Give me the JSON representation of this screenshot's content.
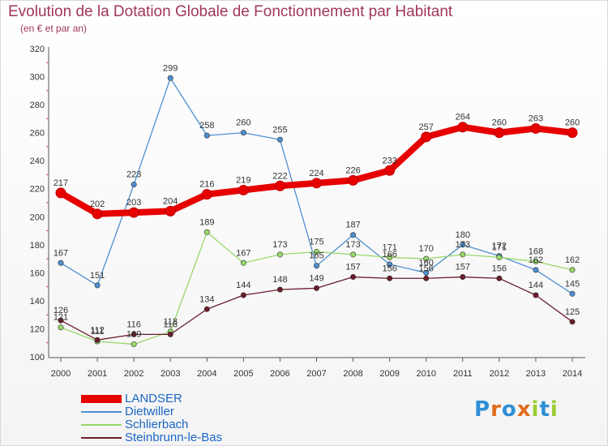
{
  "header": {
    "title": "Evolution de la Dotation Globale de Fonctionnement par Habitant",
    "subtitle": "(en € et par an)"
  },
  "chart_data": {
    "type": "line",
    "title": "Evolution de la Dotation Globale de Fonctionnement par Habitant",
    "subtitle": "(en € et par an)",
    "x": [
      "2000",
      "2001",
      "2002",
      "2003",
      "2004",
      "2005",
      "2006",
      "2007",
      "2008",
      "2009",
      "2010",
      "2011",
      "2012",
      "2013",
      "2014"
    ],
    "ylim": [
      100,
      320
    ],
    "yticks": [
      100,
      120,
      140,
      160,
      180,
      200,
      220,
      240,
      260,
      280,
      300,
      320
    ],
    "grid": false,
    "legend_position": "bottom-left",
    "series": [
      {
        "name": "LANDSER",
        "color": "#e60000",
        "values": [
          217,
          202,
          203,
          204,
          216,
          219,
          222,
          224,
          226,
          233,
          257,
          264,
          260,
          263,
          260
        ]
      },
      {
        "name": "Dietwiller",
        "color": "#4e8fd1",
        "values": [
          167,
          151,
          223,
          299,
          258,
          260,
          255,
          165,
          187,
          166,
          160,
          180,
          172,
          162,
          145
        ]
      },
      {
        "name": "Schlierbach",
        "color": "#98d86a",
        "values": [
          121,
          111,
          109,
          118,
          189,
          167,
          173,
          175,
          173,
          171,
          170,
          173,
          171,
          168,
          162
        ]
      },
      {
        "name": "Steinbrunn-le-Bas",
        "color": "#6b1d2b",
        "values": [
          126,
          112,
          116,
          116,
          134,
          144,
          148,
          149,
          157,
          156,
          156,
          157,
          156,
          144,
          125
        ]
      }
    ],
    "data_labels": [
      {
        "series": 0,
        "labels": [
          "217",
          "202",
          "203",
          "204",
          "216",
          "219",
          "222",
          "224",
          "226",
          "233",
          "257",
          "264",
          "260",
          "263",
          "260"
        ]
      },
      {
        "series": 1,
        "labels": [
          "167",
          "151",
          "223",
          "299",
          "258",
          "260",
          "255",
          "165",
          "187",
          "166",
          "160",
          "180",
          "172",
          "162",
          "145"
        ]
      },
      {
        "series": 2,
        "labels": [
          "121",
          "111",
          "109",
          "118",
          "189",
          "167",
          "173",
          "175",
          "173",
          "171",
          "170",
          "173",
          "171",
          "168",
          "162"
        ]
      },
      {
        "series": 3,
        "labels": [
          "126",
          "112",
          "116",
          "116",
          "134",
          "144",
          "148",
          "149",
          "157",
          "156",
          "156",
          "157",
          "156",
          "144",
          "125"
        ]
      }
    ]
  },
  "legend": {
    "items": [
      {
        "label": "LANDSER",
        "color": "#e60000"
      },
      {
        "label": "Dietwiller",
        "color": "#4e8fd1"
      },
      {
        "label": "Schlierbach",
        "color": "#98d86a"
      },
      {
        "label": "Steinbrunn-le-Bas",
        "color": "#6b1d2b"
      }
    ]
  },
  "logo": {
    "text": "Proxiti",
    "colors": [
      "#2e8fd6",
      "#e06c1a",
      "#2e8fd6",
      "#e06c1a",
      "#9acd32",
      "#2e8fd6",
      "#9acd32"
    ]
  }
}
